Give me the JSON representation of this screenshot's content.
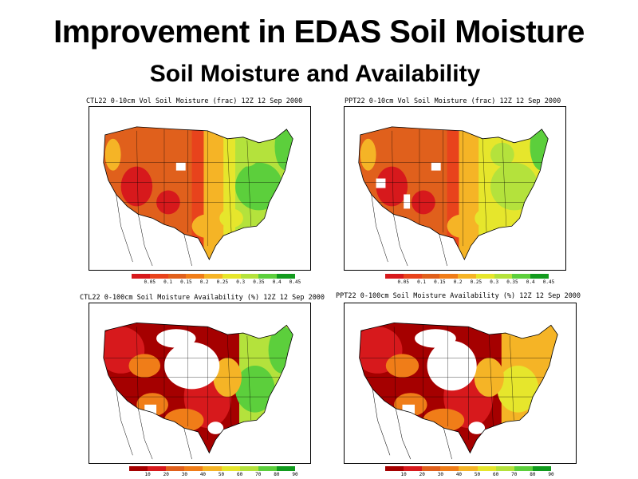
{
  "header": {
    "title": "Improvement in EDAS Soil Moisture",
    "subtitle": "Soil Moisture and Availability"
  },
  "colors": {
    "dark_red": "#a50000",
    "red": "#d7191c",
    "red_orange": "#e8431c",
    "orange": "#f07d18",
    "dark_orange": "#e0601c",
    "yellow_orange": "#f5b426",
    "yellow": "#e6e62c",
    "yellow_green": "#b4e23c",
    "green": "#5ccf3c",
    "dark_green": "#129b1e"
  },
  "panels": [
    {
      "id": "ctl-0-10",
      "title": "CTL22 0-10cm Vol Soil Moisture (frac) 12Z 12 Sep 2000",
      "colorbar_labels": [
        "0.05",
        "0.1",
        "0.15",
        "0.2",
        "0.25",
        "0.3",
        "0.35",
        "0.4",
        "0.45"
      ],
      "colorbar_colors": [
        "#d7191c",
        "#e8431c",
        "#e0601c",
        "#f07d18",
        "#f5b426",
        "#e6e62c",
        "#b4e23c",
        "#5ccf3c",
        "#129b1e"
      ]
    },
    {
      "id": "ppt-0-10",
      "title": "PPT22 0-10cm Vol Soil Moisture (frac) 12Z 12 Sep 2000",
      "colorbar_labels": [
        "0.05",
        "0.1",
        "0.15",
        "0.2",
        "0.25",
        "0.3",
        "0.35",
        "0.4",
        "0.45"
      ],
      "colorbar_colors": [
        "#d7191c",
        "#e8431c",
        "#e0601c",
        "#f07d18",
        "#f5b426",
        "#e6e62c",
        "#b4e23c",
        "#5ccf3c",
        "#129b1e"
      ]
    },
    {
      "id": "ctl-0-100",
      "title": "CTL22 0-100cm Soil Moisture Availability (%) 12Z 12 Sep 2000",
      "colorbar_labels": [
        "10",
        "20",
        "30",
        "40",
        "50",
        "60",
        "70",
        "80",
        "90"
      ],
      "colorbar_colors": [
        "#a50000",
        "#d7191c",
        "#e0601c",
        "#f07d18",
        "#f5b426",
        "#e6e62c",
        "#b4e23c",
        "#5ccf3c",
        "#129b1e"
      ]
    },
    {
      "id": "ppt-0-100",
      "title": "PPT22 0-100cm Soil Moisture Availability (%) 12Z 12 Sep 2000",
      "colorbar_labels": [
        "10",
        "20",
        "30",
        "40",
        "50",
        "60",
        "70",
        "80",
        "90"
      ],
      "colorbar_colors": [
        "#a50000",
        "#d7191c",
        "#e0601c",
        "#f07d18",
        "#f5b426",
        "#e6e62c",
        "#b4e23c",
        "#5ccf3c",
        "#129b1e"
      ]
    }
  ]
}
